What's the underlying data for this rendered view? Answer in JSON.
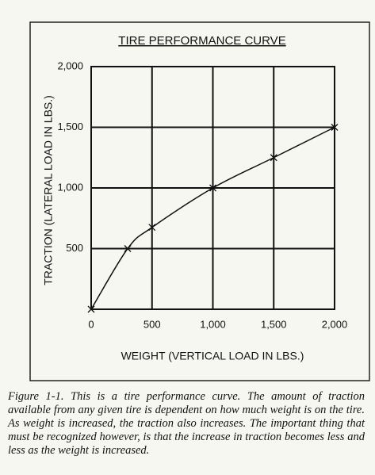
{
  "chart_data": {
    "type": "line",
    "title": "TIRE PERFORMANCE CURVE",
    "x_label": "WEIGHT (VERTICAL LOAD IN LBS.)",
    "y_label": "TRACTION (LATERAL LOAD IN LBS.)",
    "x": [
      0,
      300,
      500,
      1000,
      1500,
      2000
    ],
    "series": [
      {
        "name": "Traction",
        "color": "#111111",
        "values": [
          0,
          500,
          675,
          1000,
          1250,
          1500
        ]
      }
    ],
    "xlim": [
      0,
      2000
    ],
    "ylim": [
      0,
      2000
    ],
    "xticks": [
      0,
      500,
      {
        "value": 1000,
        "label": "1,000"
      },
      {
        "value": 1500,
        "label": "1,500"
      },
      {
        "value": 2000,
        "label": "2,000"
      }
    ],
    "yticks": [
      500,
      {
        "value": 1000,
        "label": "1,000"
      },
      {
        "value": 1500,
        "label": "1,500"
      },
      {
        "value": 2000,
        "label": "2,000"
      }
    ],
    "grid": true
  },
  "caption": "Figure 1-1. This is a tire performance curve. The amount of traction available from any given tire is dependent on how much weight is on the tire. As weight is increased, the traction also increases. The important thing that must be recognized however, is that the increase in traction becomes less and less as the weight is increased."
}
